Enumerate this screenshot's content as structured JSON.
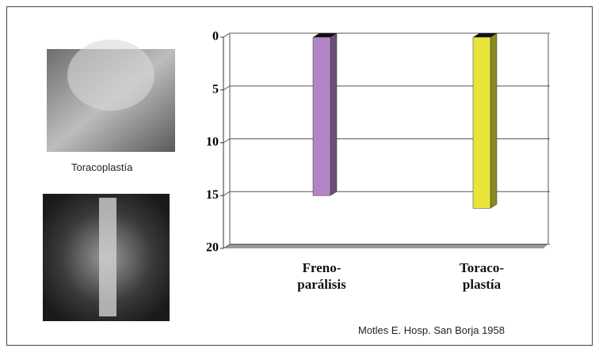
{
  "chart_data": {
    "type": "bar",
    "categories": [
      "Freno-\nparálisis",
      "Toraco-\nplastía"
    ],
    "values": [
      15,
      16.2
    ],
    "colors": [
      "#b384c4",
      "#e8e43a"
    ],
    "ylim": [
      0,
      20
    ],
    "yticks": [
      0,
      5,
      10,
      15,
      20
    ],
    "y_inverted": true,
    "grid": true
  },
  "image_caption": "Toracoplastía",
  "source": "Motles E. Hosp. San Borja  1958"
}
